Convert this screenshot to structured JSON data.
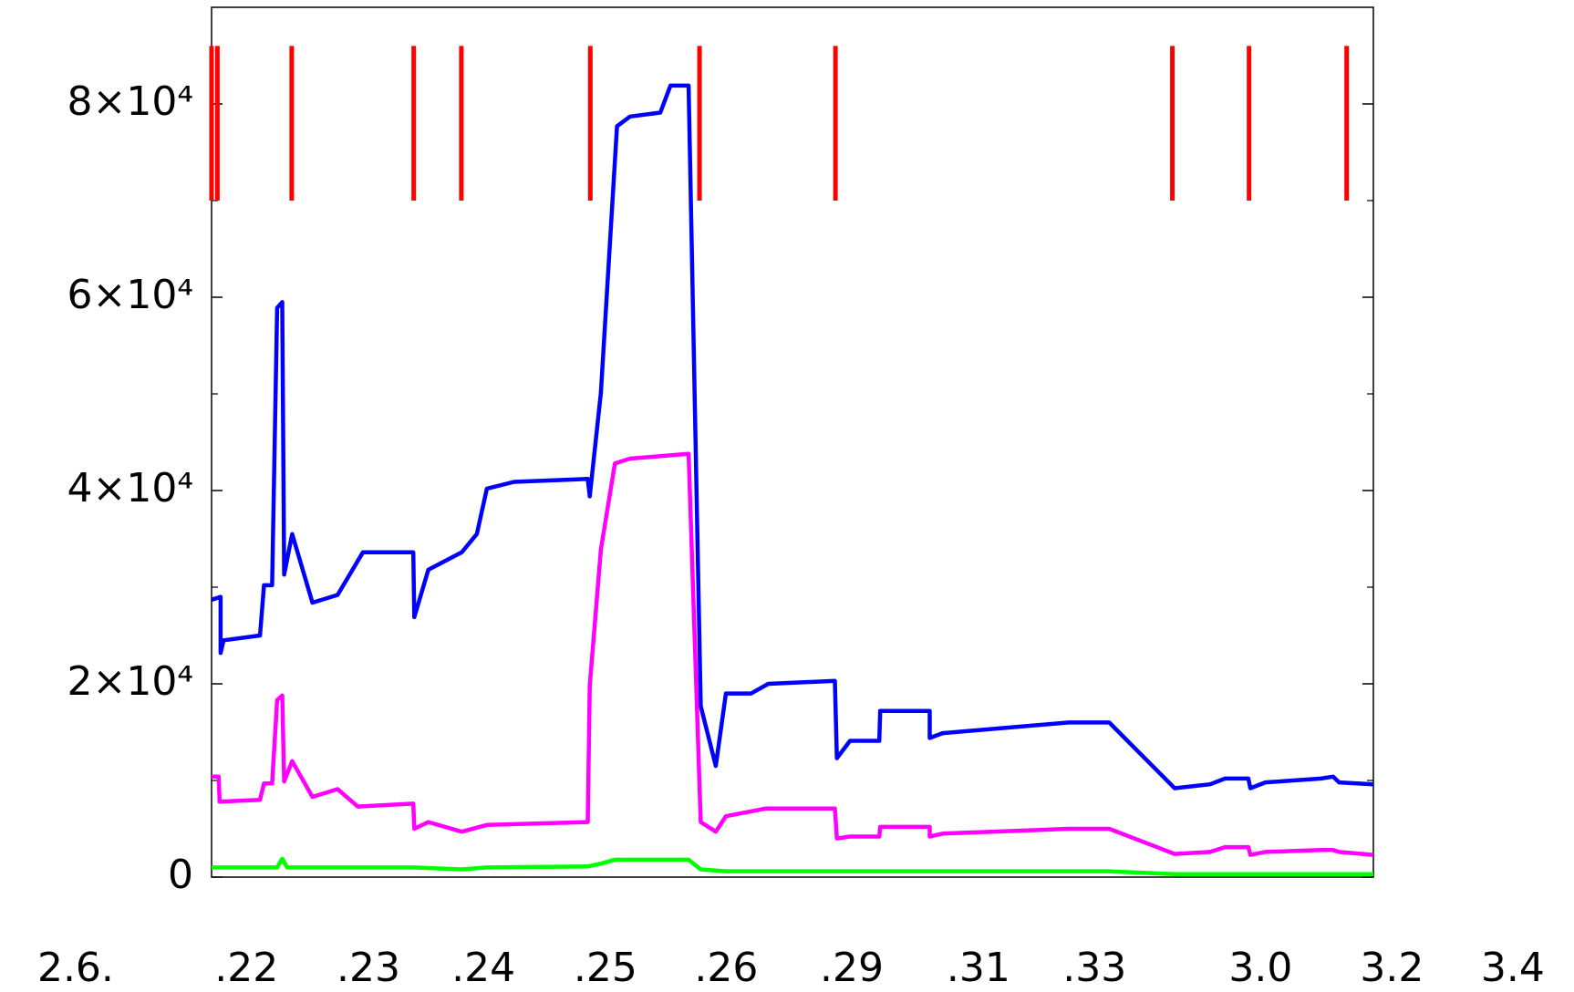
{
  "chart_data": {
    "type": "line",
    "xlim": [
      0,
      100
    ],
    "ylim": [
      0,
      90000
    ],
    "xticks": [
      {
        "value": -11.7,
        "label": "2.6."
      },
      {
        "value": 3.0,
        "label": ".22"
      },
      {
        "value": 13.5,
        "label": ".23"
      },
      {
        "value": 23.4,
        "label": ".24"
      },
      {
        "value": 33.9,
        "label": ".25"
      },
      {
        "value": 44.3,
        "label": ".26"
      },
      {
        "value": 55.1,
        "label": ".29"
      },
      {
        "value": 66.0,
        "label": ".31"
      },
      {
        "value": 76.0,
        "label": ".33"
      },
      {
        "value": 90.3,
        "label": "3.0"
      },
      {
        "value": 101.6,
        "label": "3.2"
      },
      {
        "value": 112.0,
        "label": "3.4"
      }
    ],
    "yticks": [
      0,
      {
        "value": 20000,
        "label": "2×10⁴"
      },
      {
        "value": 40000,
        "label": "4×10⁴"
      },
      {
        "value": 60000,
        "label": "6×10⁴"
      },
      {
        "value": 80000,
        "label": "8×10⁴"
      }
    ],
    "yminor": [
      10000,
      30000,
      50000,
      70000
    ],
    "markers": {
      "color": "#ff0000",
      "y0": 70000,
      "y1": 86000,
      "x": [
        0,
        0.5,
        6.9,
        17.4,
        21.5,
        32.6,
        42.0,
        53.7,
        82.7,
        89.3,
        97.7
      ]
    },
    "series": [
      {
        "color": "#0000ff",
        "x": [
          0,
          0.78,
          0.78,
          1.04,
          4.17,
          4.51,
          5.21,
          5.64,
          6.08,
          6.25,
          6.94,
          8.68,
          10.85,
          13.02,
          17.36,
          17.45,
          18.66,
          21.53,
          22.83,
          23.7,
          26.04,
          32.38,
          32.55,
          33.51,
          34.9,
          36.02,
          38.63,
          39.5,
          41.06,
          42.1,
          43.4,
          44.27,
          46.44,
          47.92,
          53.65,
          53.82,
          54.95,
          57.47,
          57.55,
          61.81,
          61.81,
          62.93,
          73.78,
          77.26,
          82.9,
          85.94,
          87.24,
          89.24,
          89.41,
          90.71,
          95.49,
          96.53,
          97.05,
          100
        ],
        "values": [
          28700,
          29000,
          23200,
          24500,
          25000,
          30200,
          30200,
          58900,
          59500,
          31300,
          35500,
          28400,
          29200,
          33600,
          33600,
          26900,
          31800,
          33600,
          35500,
          40200,
          40900,
          41200,
          39400,
          50100,
          77700,
          78700,
          79100,
          81900,
          81900,
          17700,
          11500,
          19000,
          19000,
          20000,
          20300,
          12300,
          14100,
          14100,
          17200,
          17200,
          14400,
          14900,
          16000,
          16000,
          9200,
          9600,
          10200,
          10200,
          9200,
          9800,
          10200,
          10400,
          9800,
          9600
        ]
      },
      {
        "color": "#ff00ff",
        "x": [
          0,
          0.61,
          0.69,
          4.17,
          4.51,
          5.21,
          5.64,
          6.08,
          6.25,
          6.94,
          8.68,
          10.85,
          12.58,
          17.36,
          17.45,
          18.66,
          21.53,
          23.7,
          32.38,
          32.55,
          33.51,
          34.72,
          36.02,
          41.06,
          42.1,
          43.4,
          44.27,
          47.74,
          53.65,
          53.82,
          54.95,
          57.47,
          57.55,
          61.81,
          61.81,
          62.93,
          73.78,
          77.26,
          82.9,
          85.94,
          87.24,
          89.24,
          89.41,
          90.71,
          95.49,
          96.53,
          97.05,
          100
        ],
        "values": [
          10400,
          10400,
          7800,
          8000,
          9700,
          9700,
          18300,
          18800,
          9900,
          12000,
          8300,
          9100,
          7300,
          7600,
          5000,
          5700,
          4700,
          5400,
          5700,
          19800,
          33900,
          42800,
          43300,
          43800,
          5700,
          4700,
          6300,
          7100,
          7100,
          4000,
          4200,
          4200,
          5200,
          5200,
          4200,
          4500,
          5000,
          5000,
          2400,
          2600,
          3100,
          3100,
          2300,
          2600,
          2800,
          2800,
          2600,
          2300
        ]
      },
      {
        "color": "#00ff00",
        "x": [
          0,
          5.64,
          6.08,
          6.51,
          17.36,
          21.53,
          23.7,
          32.38,
          33.51,
          34.72,
          41.06,
          42.1,
          44.27,
          53.65,
          77.26,
          82.9,
          100
        ],
        "values": [
          1000,
          1000,
          1900,
          1000,
          1000,
          800,
          1000,
          1100,
          1400,
          1800,
          1800,
          800,
          600,
          600,
          600,
          300,
          300
        ]
      }
    ]
  }
}
